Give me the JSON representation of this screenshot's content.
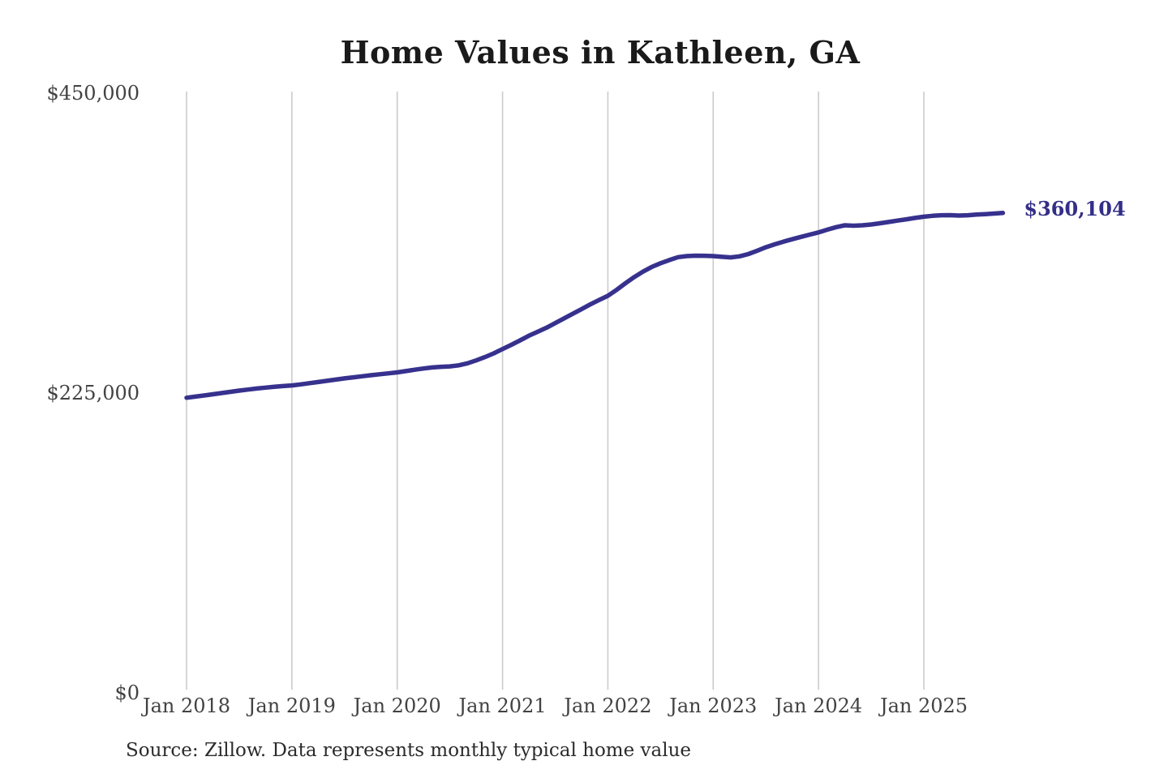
{
  "page": {
    "title": "Home Values in Kathleen, GA",
    "source_note": "Source: Zillow. Data represents monthly typical home value"
  },
  "colors": {
    "line": "#37318e",
    "end_label": "#332e87",
    "grid": "#cbcbcb",
    "tick_text": "#424242",
    "title_text": "#1a1a1a",
    "source_text": "#2b2b2b",
    "background": "#ffffff"
  },
  "chart_data": {
    "type": "line",
    "title": "Home Values in Kathleen, GA",
    "series_name": "Monthly typical home value",
    "unit": "USD",
    "grid": "vertical-only",
    "legend": "none",
    "ylim": [
      0,
      450000
    ],
    "y_ticks": [
      {
        "label": "$0",
        "value": 0
      },
      {
        "label": "$225,000",
        "value": 225000
      },
      {
        "label": "$450,000",
        "value": 450000
      }
    ],
    "x_tick_labels": [
      "Jan 2018",
      "Jan 2019",
      "Jan 2020",
      "Jan 2021",
      "Jan 2022",
      "Jan 2023",
      "Jan 2024",
      "Jan 2025"
    ],
    "months_per_x_tick": 12,
    "end_label": "$360,104",
    "end_value": 360104,
    "x": [
      "2018-01",
      "2018-02",
      "2018-03",
      "2018-04",
      "2018-05",
      "2018-06",
      "2018-07",
      "2018-08",
      "2018-09",
      "2018-10",
      "2018-11",
      "2018-12",
      "2019-01",
      "2019-02",
      "2019-03",
      "2019-04",
      "2019-05",
      "2019-06",
      "2019-07",
      "2019-08",
      "2019-09",
      "2019-10",
      "2019-11",
      "2019-12",
      "2020-01",
      "2020-02",
      "2020-03",
      "2020-04",
      "2020-05",
      "2020-06",
      "2020-07",
      "2020-08",
      "2020-09",
      "2020-10",
      "2020-11",
      "2020-12",
      "2021-01",
      "2021-02",
      "2021-03",
      "2021-04",
      "2021-05",
      "2021-06",
      "2021-07",
      "2021-08",
      "2021-09",
      "2021-10",
      "2021-11",
      "2021-12",
      "2022-01",
      "2022-02",
      "2022-03",
      "2022-04",
      "2022-05",
      "2022-06",
      "2022-07",
      "2022-08",
      "2022-09",
      "2022-10",
      "2022-11",
      "2022-12",
      "2023-01",
      "2023-02",
      "2023-03",
      "2023-04",
      "2023-05",
      "2023-06",
      "2023-07",
      "2023-08",
      "2023-09",
      "2023-10",
      "2023-11",
      "2023-12",
      "2024-01",
      "2024-02",
      "2024-03",
      "2024-04",
      "2024-05",
      "2024-06",
      "2024-07",
      "2024-08",
      "2024-09",
      "2024-10",
      "2024-11",
      "2024-12",
      "2025-01",
      "2025-02",
      "2025-03",
      "2025-04",
      "2025-05",
      "2025-06",
      "2025-07",
      "2025-08",
      "2025-09",
      "2025-10"
    ],
    "values": [
      221500,
      222300,
      223200,
      224100,
      225000,
      225900,
      226800,
      227600,
      228400,
      229100,
      229700,
      230200,
      230700,
      231500,
      232400,
      233300,
      234200,
      235100,
      236000,
      236800,
      237600,
      238400,
      239100,
      239800,
      240500,
      241500,
      242500,
      243400,
      244200,
      244700,
      245000,
      245800,
      247300,
      249500,
      252000,
      254800,
      258000,
      261200,
      264500,
      268000,
      271000,
      274000,
      277500,
      281000,
      284500,
      288000,
      291500,
      294800,
      298000,
      302500,
      307400,
      312000,
      316100,
      319600,
      322400,
      324800,
      327000,
      327800,
      328100,
      328000,
      327800,
      327200,
      326800,
      327600,
      329300,
      331800,
      334400,
      336600,
      338600,
      340400,
      342200,
      343900,
      345500,
      347600,
      349500,
      350900,
      350600,
      350900,
      351500,
      352400,
      353400,
      354400,
      355400,
      356400,
      357300,
      358000,
      358400,
      358500,
      358200,
      358400,
      358900,
      359300,
      359700,
      360104
    ]
  }
}
